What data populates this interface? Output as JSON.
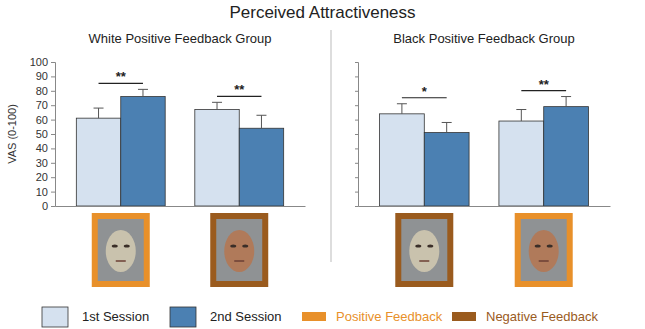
{
  "title": "Perceived Attractiveness",
  "feedback": [
    {
      "name": "Positive Feedback",
      "color": "#e8902a"
    },
    {
      "name": "Negative Feedback",
      "color": "#9a5b1e"
    }
  ],
  "chart_data": [
    {
      "type": "bar",
      "title": "White Positive Feedback Group",
      "ylabel": "VAS (0-100)",
      "categories": [
        null,
        null
      ],
      "series": [
        {
          "name": "1st Session",
          "color": "#d5e1ef",
          "values": [
            61,
            67
          ],
          "errors": [
            7,
            5
          ]
        },
        {
          "name": "2nd Session",
          "color": "#4b80b2",
          "values": [
            76,
            54
          ],
          "errors": [
            5,
            9
          ]
        }
      ],
      "significance": [
        "**",
        "**"
      ],
      "frame_colors": [
        "#e8902a",
        "#9a5b1e"
      ],
      "ylim": [
        0,
        100
      ],
      "yticks": [
        0,
        10,
        20,
        30,
        40,
        50,
        60,
        70,
        80,
        90,
        100
      ],
      "tick_labels": "y",
      "grid": false
    },
    {
      "type": "bar",
      "title": "Black Positive Feedback Group",
      "categories": [
        null,
        null
      ],
      "series": [
        {
          "name": "1st Session",
          "color": "#d5e1ef",
          "values": [
            64,
            59
          ],
          "errors": [
            7,
            8
          ]
        },
        {
          "name": "2nd Session",
          "color": "#4b80b2",
          "values": [
            51,
            69
          ],
          "errors": [
            7,
            7
          ]
        }
      ],
      "significance": [
        "*",
        "**"
      ],
      "frame_colors": [
        "#9a5b1e",
        "#e8902a"
      ],
      "ylim": [
        0,
        100
      ],
      "yticks": [
        0,
        10,
        20,
        30,
        40,
        50,
        60,
        70,
        80,
        90,
        100
      ],
      "tick_labels": false,
      "grid": false
    }
  ]
}
